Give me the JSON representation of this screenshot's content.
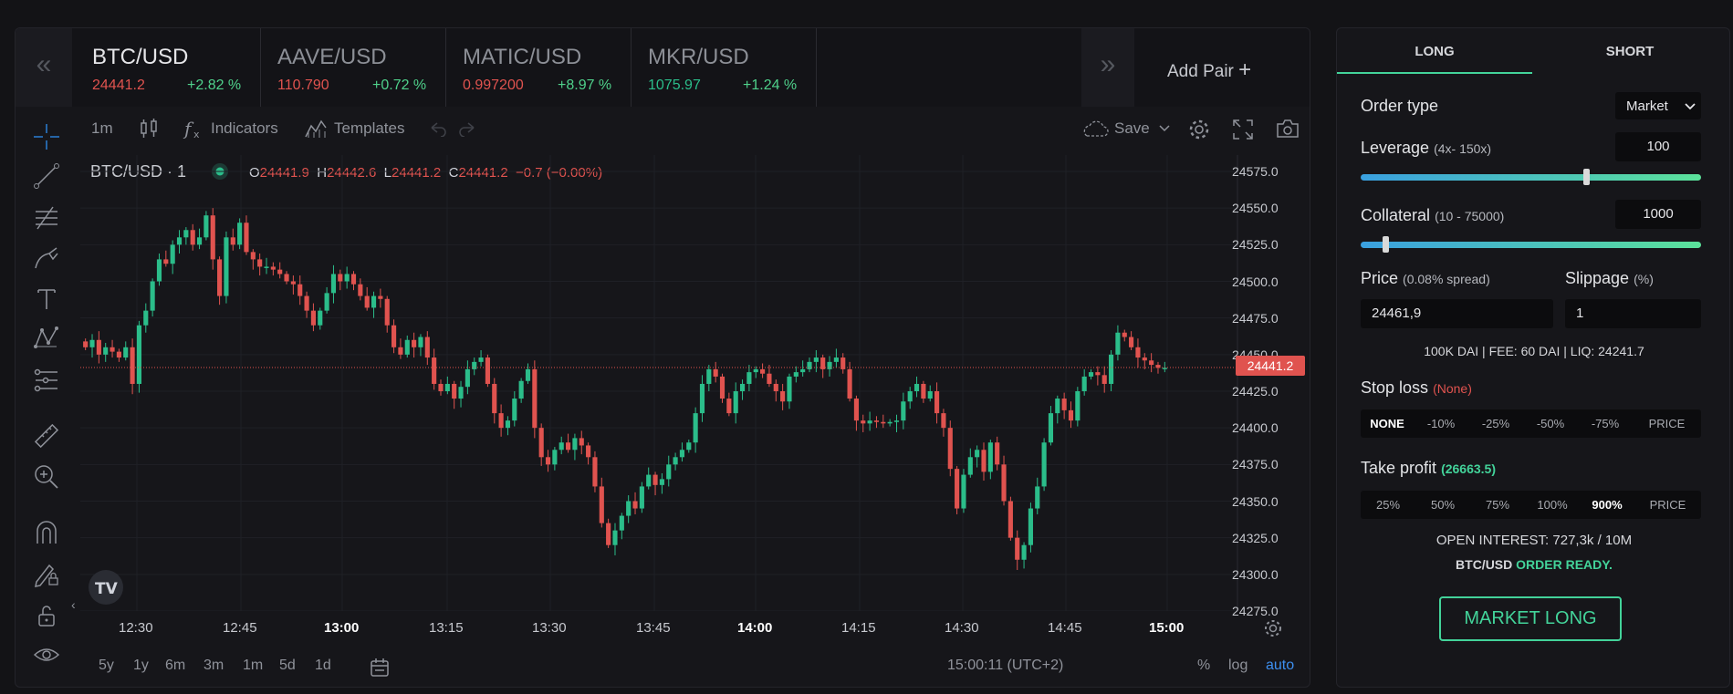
{
  "pairs": [
    {
      "name": "BTC/USD",
      "price": "24441.2",
      "price_color": "#e0534f",
      "change": "+2.82 %"
    },
    {
      "name": "AAVE/USD",
      "price": "110.790",
      "price_color": "#e0534f",
      "change": "+0.72 %"
    },
    {
      "name": "MATIC/USD",
      "price": "0.997200",
      "price_color": "#e0534f",
      "change": "+8.97 %"
    },
    {
      "name": "MKR/USD",
      "price": "1075.97",
      "price_color": "#2bbd8a",
      "change": "+1.24 %"
    }
  ],
  "nav": {
    "prev": "«",
    "next": "»",
    "add_pair": "Add Pair",
    "add_icon": "+"
  },
  "toolbar": {
    "interval": "1m",
    "indicators": "Indicators",
    "templates": "Templates",
    "save": "Save"
  },
  "legend": {
    "symbol": "BTC/USD · 1",
    "o_label": "O",
    "o": "24441.9",
    "h_label": "H",
    "h": "24442.6",
    "l_label": "L",
    "l": "24441.2",
    "c_label": "C",
    "c": "24441.2",
    "change": "−0.7 (−0.00%)"
  },
  "chart_data": {
    "type": "candlestick",
    "y_ticks": [
      "24575.0",
      "24550.0",
      "24525.0",
      "24500.0",
      "24475.0",
      "24450.0",
      "24425.0",
      "24400.0",
      "24375.0",
      "24350.0",
      "24325.0",
      "24300.0",
      "24275.0"
    ],
    "x_ticks": [
      {
        "label": "12:30",
        "bold": false
      },
      {
        "label": "12:45",
        "bold": false
      },
      {
        "label": "13:00",
        "bold": true
      },
      {
        "label": "13:15",
        "bold": false
      },
      {
        "label": "13:30",
        "bold": false
      },
      {
        "label": "13:45",
        "bold": false
      },
      {
        "label": "14:00",
        "bold": true
      },
      {
        "label": "14:15",
        "bold": false
      },
      {
        "label": "14:30",
        "bold": false
      },
      {
        "label": "14:45",
        "bold": false
      },
      {
        "label": "15:00",
        "bold": true
      }
    ],
    "ylim": [
      24270,
      24585
    ],
    "last_price": "24441.2",
    "last_price_value": 24441.2,
    "closes": [
      24455,
      24460,
      24450,
      24455,
      24452,
      24448,
      24455,
      24430,
      24470,
      24480,
      24500,
      24515,
      24512,
      24525,
      24530,
      24535,
      24525,
      24530,
      24545,
      24515,
      24490,
      24530,
      24525,
      24540,
      24520,
      24515,
      24510,
      24510,
      24508,
      24505,
      24500,
      24498,
      24490,
      24480,
      24470,
      24480,
      24492,
      24505,
      24500,
      24505,
      24498,
      24490,
      24482,
      24490,
      24488,
      24470,
      24455,
      24450,
      24460,
      24455,
      24462,
      24448,
      24430,
      24425,
      24430,
      24420,
      24428,
      24440,
      24445,
      24448,
      24430,
      24410,
      24400,
      24405,
      24420,
      24432,
      24440,
      24400,
      24380,
      24375,
      24385,
      24390,
      24385,
      24393,
      24388,
      24380,
      24360,
      24335,
      24320,
      24330,
      24340,
      24350,
      24345,
      24360,
      24368,
      24361,
      24365,
      24375,
      24380,
      24385,
      24390,
      24410,
      24430,
      24440,
      24435,
      24420,
      24410,
      24425,
      24430,
      24438,
      24440,
      24437,
      24430,
      24425,
      24418,
      24435,
      24438,
      24440,
      24445,
      24448,
      24440,
      24445,
      24448,
      24440,
      24420,
      24405,
      24403,
      24405,
      24404,
      24403,
      24404,
      24405,
      24418,
      24425,
      24430,
      24420,
      24425,
      24410,
      24400,
      24372,
      24345,
      24368,
      24380,
      24385,
      24370,
      24390,
      24375,
      24350,
      24325,
      24310,
      24320,
      24345,
      24360,
      24390,
      24410,
      24420,
      24412,
      24405,
      24425,
      24435,
      24438,
      24436,
      24430,
      24450,
      24465,
      24462,
      24455,
      24448,
      24446,
      24443,
      24441,
      24441
    ],
    "x_labels_positions_comment": ""
  },
  "bottom_bar": {
    "ranges": [
      "5y",
      "1y",
      "6m",
      "3m",
      "1m",
      "5d",
      "1d"
    ],
    "time": "15:00:11 (UTC+2)",
    "percent": "%",
    "log": "log",
    "auto": "auto"
  },
  "order": {
    "tab_long": "LONG",
    "tab_short": "SHORT",
    "order_type_label": "Order type",
    "order_type_value": "Market",
    "leverage_label": "Leverage",
    "leverage_range": "(4x- 150x)",
    "leverage_value": "100",
    "leverage_fraction": 0.655,
    "collateral_label": "Collateral",
    "collateral_range": "(10 - 75000)",
    "collateral_value": "1000",
    "collateral_fraction": 0.065,
    "price_label": "Price",
    "price_spread": "(0.08% spread)",
    "price_value": "24461,9",
    "slippage_label": "Slippage",
    "slippage_unit": "(%)",
    "slippage_value": "1",
    "fee_info": "100K DAI | FEE: 60 DAI | LIQ: 24241.7",
    "stop_loss_label": "Stop loss",
    "stop_loss_value": "(None)",
    "stop_loss_options": [
      "NONE",
      "-10%",
      "-25%",
      "-50%",
      "-75%",
      "PRICE"
    ],
    "take_profit_label": "Take profit",
    "take_profit_value": "(26663.5)",
    "take_profit_options": [
      "25%",
      "50%",
      "75%",
      "100%",
      "900%",
      "PRICE"
    ],
    "open_interest": "OPEN INTEREST: 727,3k / 10M",
    "ready_pair": "BTC/USD",
    "ready_text": "ORDER READY.",
    "market_button": "MARKET LONG"
  },
  "colors": {
    "up": "#2bbd8a",
    "down": "#e0534f",
    "accent_green": "#43d39a",
    "auto_blue": "#3d8ff0"
  }
}
